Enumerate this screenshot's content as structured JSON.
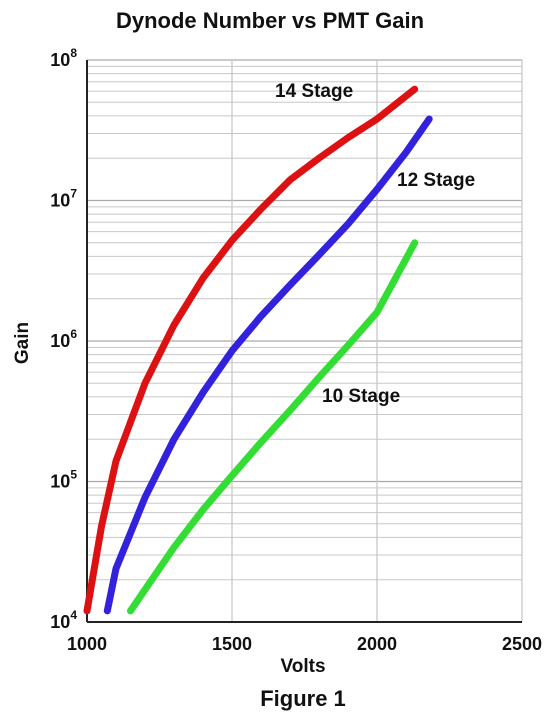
{
  "chart_data": {
    "type": "line",
    "title": "Dynode Number vs PMT Gain",
    "xlabel": "Volts",
    "ylabel": "Gain",
    "caption": "Figure 1",
    "xlim": [
      1000,
      2500
    ],
    "ylim": [
      10000,
      100000000
    ],
    "yscale": "log",
    "grid": true,
    "x_ticks": [
      "1000",
      "1500",
      "2000",
      "2500"
    ],
    "y_ticks": [
      {
        "value": 10000,
        "base": "10",
        "exp": "4"
      },
      {
        "value": 100000,
        "base": "10",
        "exp": "5"
      },
      {
        "value": 1000000,
        "base": "10",
        "exp": "6"
      },
      {
        "value": 10000000,
        "base": "10",
        "exp": "7"
      },
      {
        "value": 100000000,
        "base": "10",
        "exp": "8"
      }
    ],
    "series": [
      {
        "name": "14 Stage",
        "color": "#dd1111",
        "x": [
          1000,
          1050,
          1100,
          1200,
          1300,
          1400,
          1500,
          1600,
          1700,
          1800,
          1900,
          2000,
          2130
        ],
        "y": [
          12000,
          48000,
          140000,
          500000,
          1300000,
          2800000,
          5200000,
          8700000,
          14000000,
          20000000,
          28000000,
          38000000,
          62000000
        ]
      },
      {
        "name": "12 Stage",
        "color": "#3322dd",
        "x": [
          1070,
          1100,
          1200,
          1300,
          1400,
          1500,
          1600,
          1700,
          1800,
          1900,
          2000,
          2100,
          2180
        ],
        "y": [
          12000,
          24000,
          77000,
          200000,
          430000,
          850000,
          1500000,
          2500000,
          4100000,
          6800000,
          12000000,
          22000000,
          38000000
        ]
      },
      {
        "name": "10 Stage",
        "color": "#33dd33",
        "x": [
          1150,
          1200,
          1300,
          1400,
          1500,
          1600,
          1700,
          1800,
          1900,
          2000,
          2130
        ],
        "y": [
          12000,
          17000,
          34000,
          63000,
          110000,
          190000,
          320000,
          550000,
          930000,
          1600000,
          5000000
        ]
      }
    ]
  }
}
